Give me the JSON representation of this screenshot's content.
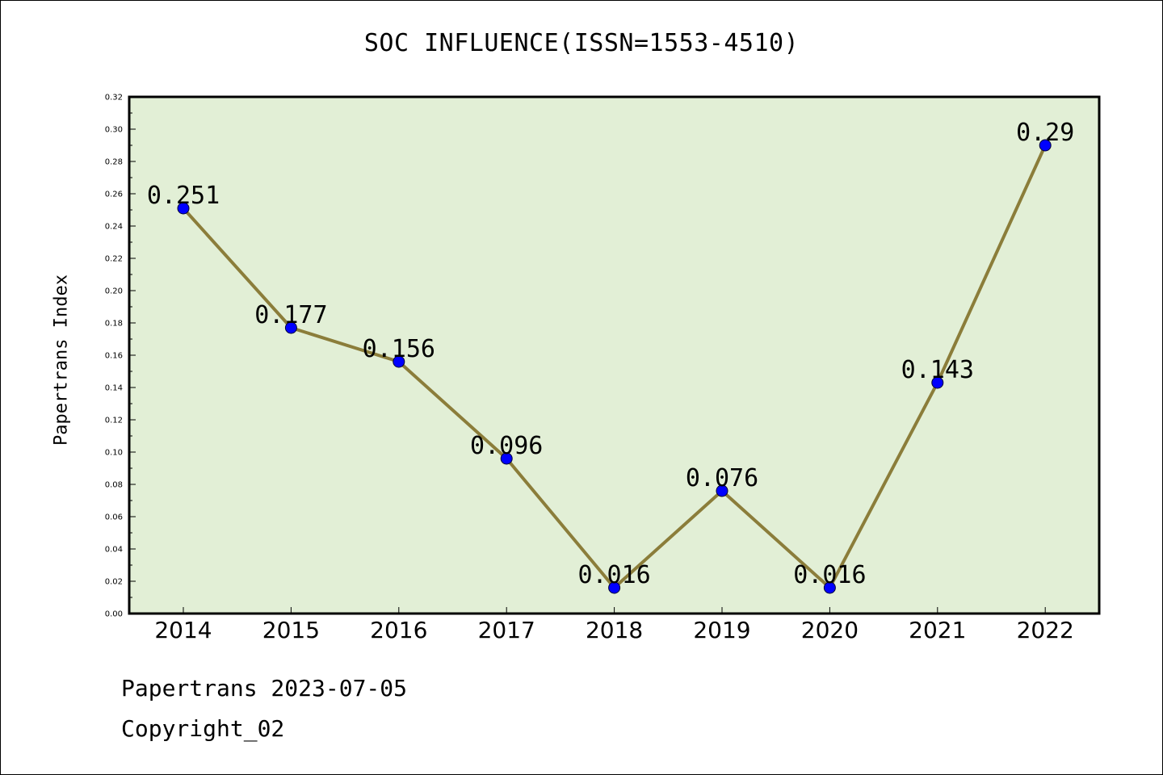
{
  "chart_data": {
    "type": "line",
    "title": "SOC INFLUENCE(ISSN=1553-4510)",
    "ylabel": "Papertrans Index",
    "xlabel": "",
    "x": [
      "2014",
      "2015",
      "2016",
      "2017",
      "2018",
      "2019",
      "2020",
      "2021",
      "2022"
    ],
    "series": [
      {
        "values": [
          0.251,
          0.177,
          0.156,
          0.096,
          0.016,
          0.076,
          0.016,
          0.143,
          0.29
        ],
        "data_labels": [
          "0.251",
          "0.177",
          "0.156",
          "0.096",
          "0.016",
          "0.076",
          "0.016",
          "0.143",
          "0.29"
        ],
        "line_color": "#8b7d3a",
        "marker_color": "#0000ff"
      }
    ],
    "ylim": [
      0,
      0.32
    ],
    "y_ticks": [
      "0.00",
      "0.02",
      "0.04",
      "0.06",
      "0.08",
      "0.10",
      "0.12",
      "0.14",
      "0.16",
      "0.18",
      "0.20",
      "0.22",
      "0.24",
      "0.26",
      "0.28",
      "0.30",
      "0.32"
    ],
    "plot_background": "#e2efd6",
    "grid": false,
    "legend": "none"
  },
  "footer": {
    "line1": "Papertrans 2023-07-05",
    "line2": "Copyright_02"
  }
}
